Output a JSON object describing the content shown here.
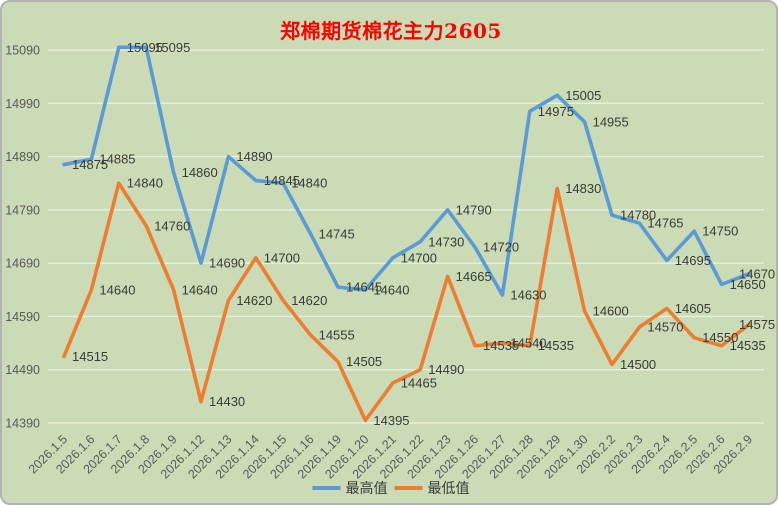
{
  "chart_data": {
    "type": "line",
    "title": "郑棉期货棉花主力2605",
    "title_color": "#FF0000",
    "background_color": "#CADBB5",
    "gridline_color": "#E9F0DF",
    "axis_text_color": "#595959",
    "data_label_color": "#3A3A3A",
    "grid": true,
    "legend_position": "bottom",
    "data_labels_visible": true,
    "categories": [
      "2026.1.5",
      "2026.1.6",
      "2026.1.7",
      "2026.1.8",
      "2026.1.9",
      "2026.1.12",
      "2026.1.13",
      "2026.1.14",
      "2026.1.15",
      "2026.1.16",
      "2026.1.19",
      "2026.1.20",
      "2026.1.21",
      "2026.1.22",
      "2026.1.23",
      "2026.1.26",
      "2026.1.27",
      "2026.1.28",
      "2026.1.29",
      "2026.1.30",
      "2026.2.2",
      "2026.2.3",
      "2026.2.4",
      "2026.2.5",
      "2026.2.6",
      "2026.2.9"
    ],
    "series": [
      {
        "name": "最高值",
        "color": "#5B9BD5",
        "values": [
          14875,
          14885,
          15095,
          15095,
          14860,
          14690,
          14890,
          14845,
          14840,
          14745,
          14645,
          14640,
          14700,
          14730,
          14790,
          14720,
          14630,
          14975,
          15005,
          14955,
          14780,
          14765,
          14695,
          14750,
          14650,
          14670
        ]
      },
      {
        "name": "最低值",
        "color": "#ED7D31",
        "values": [
          14515,
          14640,
          14840,
          14760,
          14640,
          14430,
          14620,
          14700,
          14620,
          14555,
          14505,
          14395,
          14465,
          14490,
          14665,
          14535,
          14540,
          14535,
          14830,
          14600,
          14500,
          14570,
          14605,
          14550,
          14535,
          14575
        ]
      }
    ],
    "y_ticks": [
      14390,
      14490,
      14590,
      14690,
      14790,
      14890,
      14990,
      15090
    ],
    "ylim": [
      14390,
      15090
    ]
  }
}
